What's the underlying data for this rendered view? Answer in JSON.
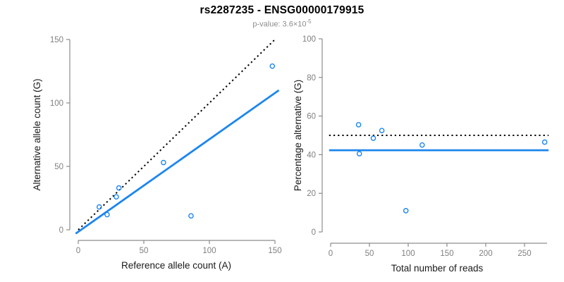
{
  "header": {
    "title": "rs2287235 - ENSG00000179915",
    "subtitle_prefix": "p-value: 3.6×10",
    "subtitle_exponent": "-5"
  },
  "colors": {
    "point_blue": "#1C86EE",
    "fit_line_blue": "#1C86EE",
    "dotted_line": "#000000",
    "axis_line": "#8c8c8c",
    "tick_label": "#7f7f7f",
    "axis_title": "#1a1a1a",
    "title": "#000000",
    "subtitle": "#8c8c8c",
    "background": "#ffffff"
  },
  "chart_data": [
    {
      "type": "scatter",
      "name": "allele-counts",
      "xlabel": "Reference allele count (A)",
      "ylabel": "Alternative allele count (G)",
      "xlim": [
        0,
        150
      ],
      "ylim": [
        0,
        150
      ],
      "xticks": [
        0,
        50,
        100,
        150
      ],
      "yticks": [
        0,
        50,
        100,
        150
      ],
      "grid": false,
      "legend": null,
      "point_shape": "open-circle",
      "points": [
        {
          "x": 148,
          "y": 129
        },
        {
          "x": 86,
          "y": 11
        },
        {
          "x": 65,
          "y": 53
        },
        {
          "x": 31,
          "y": 33
        },
        {
          "x": 29,
          "y": 26
        },
        {
          "x": 22,
          "y": 12
        },
        {
          "x": 16,
          "y": 18
        }
      ],
      "lines": [
        {
          "name": "identity-line-50pct",
          "style": "dotted",
          "from": [
            0,
            0
          ],
          "to": [
            150,
            150
          ],
          "slope": 1,
          "intercept": 0
        },
        {
          "name": "fit-line",
          "style": "solid",
          "from": [
            -2,
            -3
          ],
          "to": [
            153,
            110
          ],
          "slope": 0.72,
          "intercept": 0
        }
      ]
    },
    {
      "type": "scatter",
      "name": "percentage-vs-coverage",
      "xlabel": "Total number of reads",
      "ylabel": "Percentage alternative (G)",
      "xlim": [
        0,
        280
      ],
      "ylim": [
        0,
        100
      ],
      "xticks": [
        0,
        50,
        100,
        150,
        200,
        250
      ],
      "yticks": [
        0,
        20,
        40,
        60,
        80,
        100
      ],
      "grid": false,
      "legend": null,
      "point_shape": "open-circle",
      "points": [
        {
          "x": 36,
          "y": 55.5
        },
        {
          "x": 37,
          "y": 40.5
        },
        {
          "x": 55,
          "y": 48.5
        },
        {
          "x": 66,
          "y": 52.5
        },
        {
          "x": 97,
          "y": 11
        },
        {
          "x": 118,
          "y": 45
        },
        {
          "x": 276,
          "y": 46.5
        }
      ],
      "lines": [
        {
          "name": "null-line-50pct",
          "style": "dotted",
          "y": 50,
          "x_from": -2,
          "x_to": 281
        },
        {
          "name": "mean-percentage-line",
          "style": "solid",
          "y": 42.3,
          "x_from": -2,
          "x_to": 281
        }
      ]
    }
  ]
}
